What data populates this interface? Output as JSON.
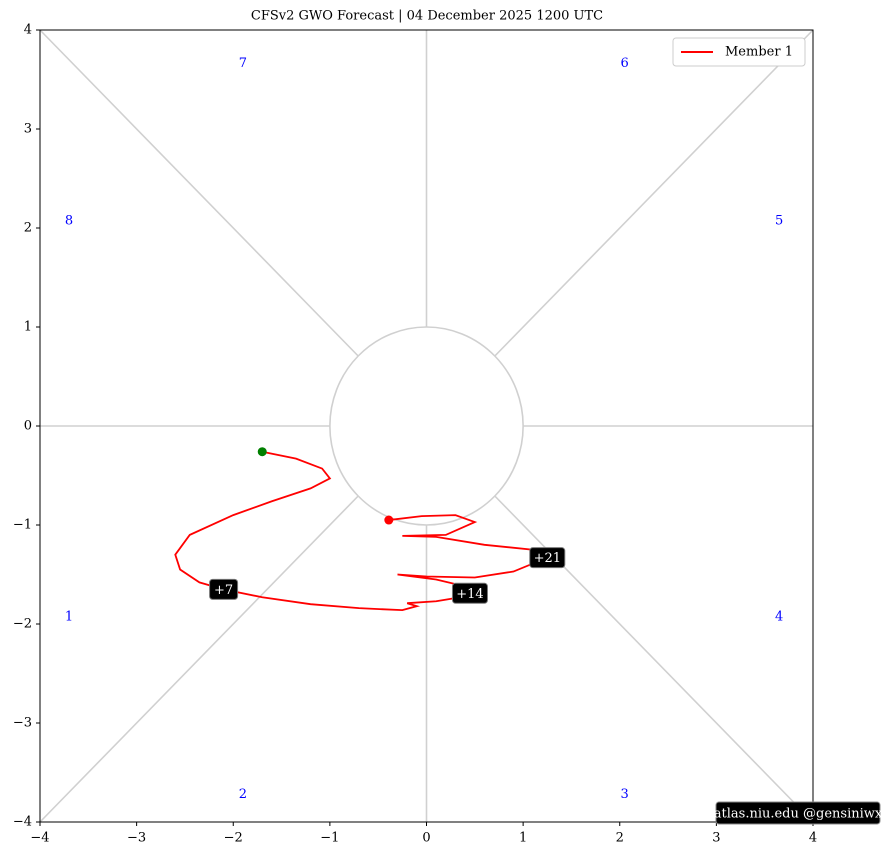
{
  "chart_data": {
    "type": "line",
    "title": "CFSv2 GWO Forecast   |   04  December  2025 1200 UTC",
    "x": [
      -1.7,
      -1.35,
      -1.08,
      -1.0,
      -1.2,
      -1.6,
      -2.0,
      -2.45,
      -2.6,
      -2.55,
      -2.35,
      -2.1,
      -1.7,
      -1.2,
      -0.7,
      -0.25,
      -0.1,
      -0.2,
      0.1,
      0.35,
      0.45,
      0.4,
      0.1,
      -0.3,
      0.0,
      0.5,
      0.9,
      1.25,
      1.1,
      0.6,
      0.1,
      -0.25,
      0.2,
      0.5,
      0.3,
      -0.05,
      -0.39
    ],
    "series": [
      {
        "name": "Member 1",
        "color": "#ff0000",
        "values": [
          -0.26,
          -0.33,
          -0.43,
          -0.53,
          -0.63,
          -0.76,
          -0.9,
          -1.1,
          -1.3,
          -1.45,
          -1.58,
          -1.65,
          -1.73,
          -1.8,
          -1.84,
          -1.86,
          -1.82,
          -1.79,
          -1.77,
          -1.73,
          -1.69,
          -1.62,
          -1.55,
          -1.5,
          -1.52,
          -1.53,
          -1.47,
          -1.33,
          -1.25,
          -1.2,
          -1.12,
          -1.11,
          -1.1,
          -0.97,
          -0.9,
          -0.91,
          -0.95
        ]
      }
    ],
    "start_color": "#008000",
    "end_color": "#ff0000",
    "annotations": [
      {
        "text": "+7",
        "x": -2.1,
        "y": -1.65
      },
      {
        "text": "+14",
        "x": 0.45,
        "y": -1.69
      },
      {
        "text": "+21",
        "x": 1.25,
        "y": -1.33
      }
    ],
    "phases": [
      "1",
      "2",
      "3",
      "4",
      "5",
      "6",
      "7",
      "8"
    ],
    "phase_color": "#0000ff",
    "xlim": [
      -4,
      4
    ],
    "ylim": [
      -4,
      4
    ],
    "xticks": [
      {
        "value": -4,
        "label": "−4"
      },
      {
        "value": -3,
        "label": "−3"
      },
      {
        "value": -2,
        "label": "−2"
      },
      {
        "value": -1,
        "label": "−1"
      },
      0,
      1,
      2,
      3,
      4
    ],
    "yticks": [
      {
        "value": -4,
        "label": "−4"
      },
      {
        "value": -3,
        "label": "−3"
      },
      {
        "value": -2,
        "label": "−2"
      },
      {
        "value": -1,
        "label": "−1"
      },
      0,
      1,
      2,
      3,
      4
    ],
    "legend": "upper right",
    "credit": "atlas.niu.edu  @gensiniwx"
  }
}
